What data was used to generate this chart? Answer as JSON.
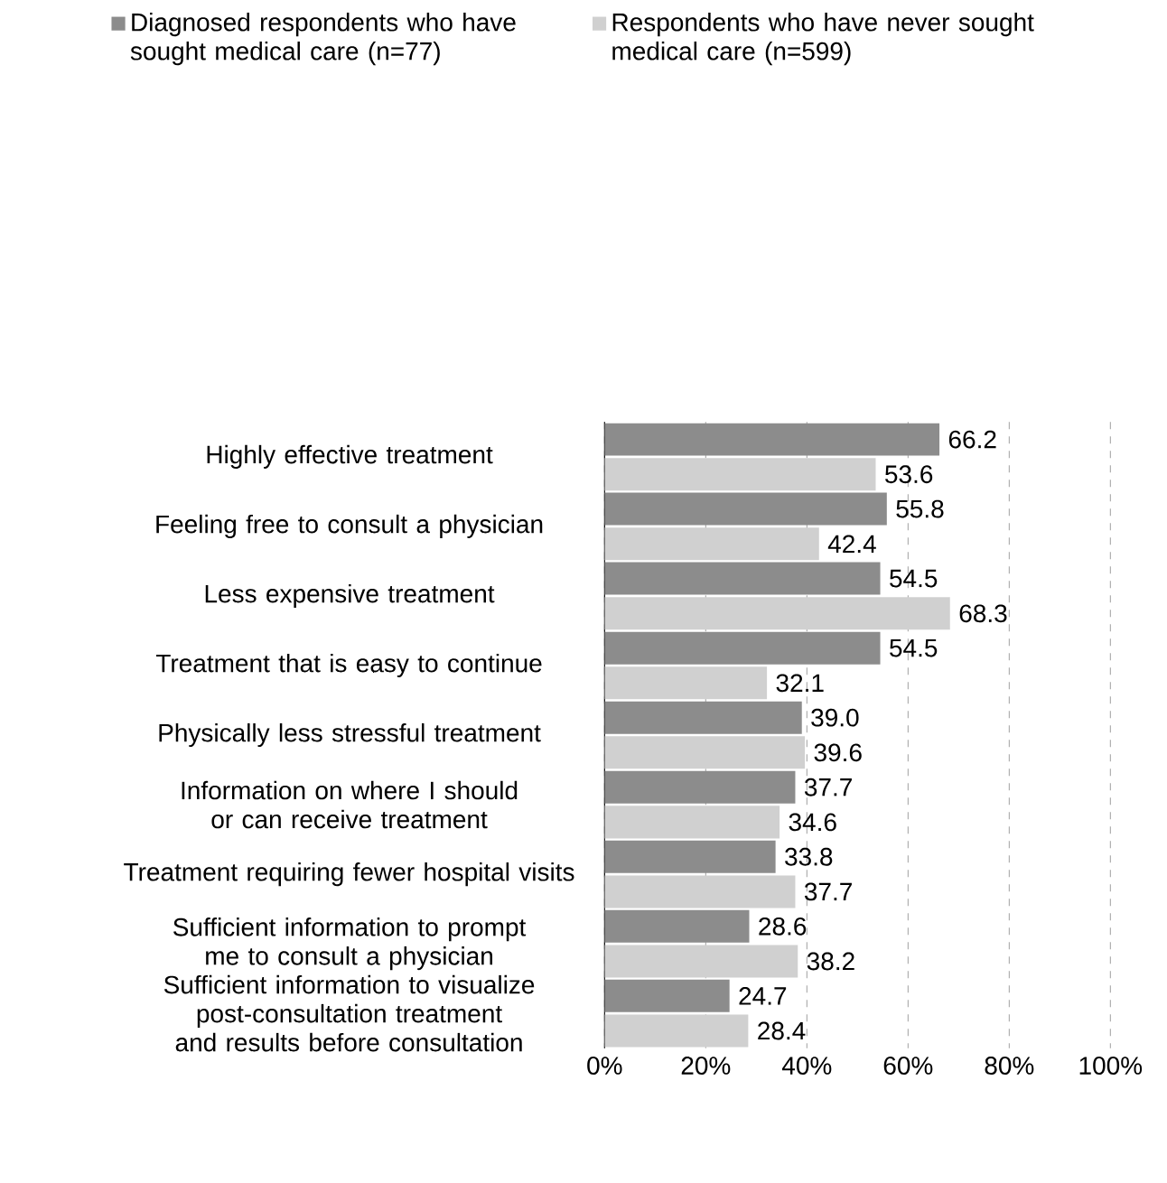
{
  "chart_data": {
    "type": "bar",
    "orientation": "horizontal",
    "categories": [
      "Highly effective treatment",
      "Feeling free to consult a physician",
      "Less expensive treatment",
      "Treatment that is easy to continue",
      "Physically less stressful treatment",
      "Information on where I should or can receive treatment",
      "Treatment requiring fewer hospital visits",
      "Sufficient information to prompt me to consult a physician",
      "Sufficient information to visualize post-consultation treatment and results before consultation"
    ],
    "series": [
      {
        "name": "Diagnosed respondents who have sought medical care (n=77)",
        "color": "#8c8c8c",
        "values": [
          66.2,
          55.8,
          54.5,
          54.5,
          39.0,
          37.7,
          33.8,
          28.6,
          24.7
        ],
        "value_labels": [
          "66.2",
          "55.8",
          "54.5",
          "54.5",
          "39.0",
          "37.7",
          "33.8",
          "28.6",
          "24.7"
        ]
      },
      {
        "name": "Respondents who have never sought medical care (n=599)",
        "color": "#d0d0d0",
        "values": [
          53.6,
          42.4,
          68.3,
          32.1,
          39.6,
          34.6,
          37.7,
          38.2,
          28.4
        ],
        "value_labels": [
          "53.6",
          "42.4",
          "68.3",
          "32.1",
          "39.6",
          "34.6",
          "37.7",
          "38.2",
          "28.4"
        ]
      }
    ],
    "xlim": [
      0,
      100
    ],
    "xticks": [
      {
        "value": 0,
        "label": "0%"
      },
      {
        "value": 20,
        "label": "20%"
      },
      {
        "value": 40,
        "label": "40%"
      },
      {
        "value": 60,
        "label": "60%"
      },
      {
        "value": 80,
        "label": "80%"
      },
      {
        "value": 100,
        "label": "100%"
      }
    ],
    "grid": "x",
    "legend": "top"
  }
}
